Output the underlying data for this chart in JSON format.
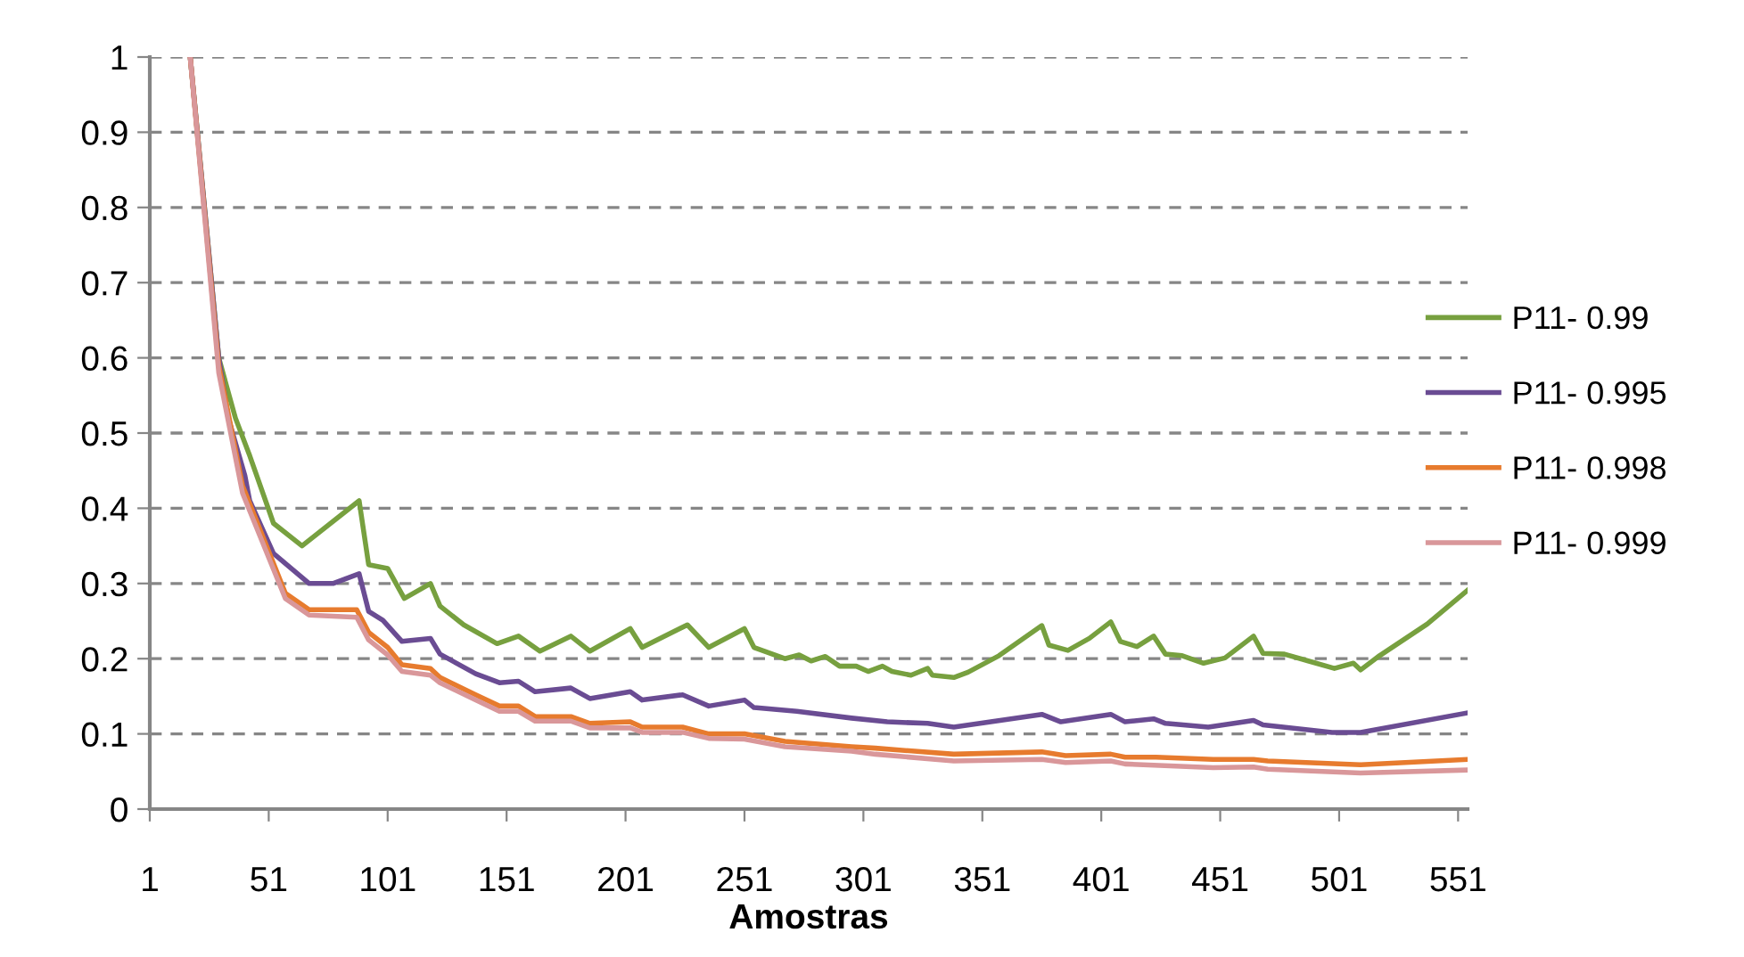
{
  "chart_data": {
    "type": "line",
    "xlabel": "Amostras",
    "xlim": [
      1,
      555
    ],
    "xticks": [
      1,
      51,
      101,
      151,
      201,
      251,
      301,
      351,
      401,
      451,
      501,
      551
    ],
    "ylim": [
      0,
      1
    ],
    "yticks": [
      0,
      0.1,
      0.2,
      0.3,
      0.4,
      0.5,
      0.6,
      0.7,
      0.8,
      0.9,
      1
    ],
    "grid": "y",
    "legend": "right",
    "marker": "none",
    "line_style": "solid",
    "series": [
      {
        "name": "P11- 0.99",
        "color": "#77a03f",
        "x": [
          18,
          30,
          37,
          43,
          53,
          65,
          89,
          93,
          101,
          108,
          119,
          123,
          133,
          147,
          156,
          165,
          178,
          186,
          203,
          208,
          227,
          236,
          251,
          255,
          268,
          274,
          279,
          285,
          291,
          298,
          303,
          309,
          313,
          321,
          328,
          330,
          339,
          345,
          358,
          376,
          379,
          387,
          396,
          405,
          409,
          416,
          423,
          428,
          435,
          444,
          453,
          465,
          469,
          478,
          488,
          499,
          507,
          510,
          518,
          538,
          555
        ],
        "values": [
          1.0,
          0.6,
          0.52,
          0.47,
          0.38,
          0.35,
          0.41,
          0.325,
          0.32,
          0.28,
          0.3,
          0.27,
          0.245,
          0.22,
          0.23,
          0.21,
          0.23,
          0.21,
          0.24,
          0.215,
          0.245,
          0.215,
          0.24,
          0.215,
          0.2,
          0.205,
          0.197,
          0.203,
          0.19,
          0.19,
          0.183,
          0.19,
          0.183,
          0.178,
          0.187,
          0.178,
          0.175,
          0.182,
          0.204,
          0.244,
          0.218,
          0.211,
          0.227,
          0.249,
          0.223,
          0.216,
          0.23,
          0.206,
          0.204,
          0.194,
          0.201,
          0.23,
          0.207,
          0.206,
          0.197,
          0.187,
          0.194,
          0.185,
          0.204,
          0.246,
          0.291
        ]
      },
      {
        "name": "P11- 0.995",
        "color": "#6a4c93",
        "x": [
          18,
          30,
          34,
          41,
          43,
          53,
          68,
          78,
          89,
          93,
          99,
          107,
          119,
          123,
          138,
          148,
          156,
          163,
          178,
          186,
          203,
          208,
          225,
          236,
          251,
          255,
          273,
          296,
          311,
          328,
          339,
          376,
          384,
          405,
          411,
          423,
          428,
          446,
          465,
          469,
          498,
          510,
          555
        ],
        "values": [
          1.0,
          0.6,
          0.52,
          0.443,
          0.41,
          0.34,
          0.3,
          0.3,
          0.313,
          0.263,
          0.251,
          0.223,
          0.227,
          0.206,
          0.18,
          0.168,
          0.17,
          0.156,
          0.161,
          0.147,
          0.156,
          0.145,
          0.152,
          0.137,
          0.145,
          0.135,
          0.13,
          0.121,
          0.116,
          0.114,
          0.109,
          0.126,
          0.116,
          0.126,
          0.116,
          0.12,
          0.114,
          0.109,
          0.118,
          0.112,
          0.102,
          0.102,
          0.128
        ]
      },
      {
        "name": "P11- 0.998",
        "color": "#e77b2e",
        "x": [
          18,
          30,
          40,
          58,
          68,
          88,
          93,
          101,
          107,
          119,
          123,
          138,
          148,
          156,
          163,
          178,
          186,
          203,
          208,
          225,
          236,
          251,
          268,
          296,
          306,
          339,
          376,
          386,
          405,
          411,
          424,
          448,
          465,
          471,
          510,
          555
        ],
        "values": [
          1.0,
          0.59,
          0.43,
          0.287,
          0.265,
          0.265,
          0.235,
          0.215,
          0.192,
          0.187,
          0.175,
          0.152,
          0.137,
          0.137,
          0.123,
          0.123,
          0.114,
          0.116,
          0.109,
          0.109,
          0.1,
          0.1,
          0.09,
          0.083,
          0.081,
          0.073,
          0.076,
          0.071,
          0.073,
          0.069,
          0.069,
          0.066,
          0.066,
          0.064,
          0.059,
          0.066
        ]
      },
      {
        "name": "P11- 0.999",
        "color": "#d9979a",
        "x": [
          18,
          30,
          40,
          58,
          68,
          88,
          93,
          101,
          107,
          119,
          123,
          138,
          148,
          156,
          163,
          178,
          186,
          203,
          208,
          225,
          236,
          251,
          268,
          296,
          306,
          339,
          376,
          386,
          405,
          411,
          448,
          465,
          471,
          510,
          555
        ],
        "values": [
          1.0,
          0.58,
          0.42,
          0.28,
          0.258,
          0.255,
          0.225,
          0.205,
          0.183,
          0.178,
          0.168,
          0.145,
          0.13,
          0.13,
          0.117,
          0.117,
          0.108,
          0.108,
          0.102,
          0.102,
          0.094,
          0.093,
          0.083,
          0.077,
          0.073,
          0.064,
          0.066,
          0.062,
          0.064,
          0.06,
          0.055,
          0.056,
          0.053,
          0.048,
          0.052
        ]
      }
    ]
  }
}
